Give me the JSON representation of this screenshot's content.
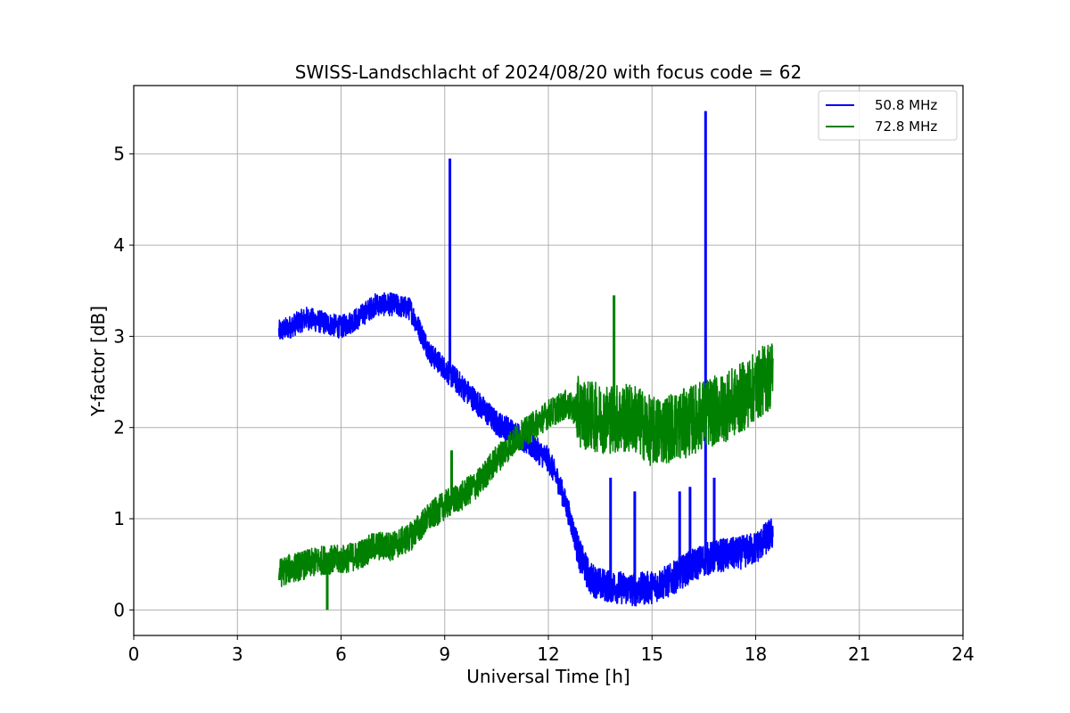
{
  "chart_data": {
    "type": "line",
    "title": "SWISS-Landschlacht of 2024/08/20 with focus code = 62",
    "xlabel": "Universal Time [h]",
    "ylabel": "Y-factor [dB]",
    "xlim": [
      0,
      24
    ],
    "ylim": [
      -0.28,
      5.75
    ],
    "xticks": [
      0,
      3,
      6,
      9,
      12,
      15,
      18,
      21,
      24
    ],
    "yticks": [
      0,
      1,
      2,
      3,
      4,
      5
    ],
    "grid": true,
    "legend_position": "top-right",
    "series": [
      {
        "name": "50.8 MHz",
        "color": "#0000ff",
        "noise": 0.28,
        "x": [
          4.2,
          4.5,
          5.0,
          5.5,
          6.0,
          6.5,
          7.0,
          7.5,
          8.0,
          8.3,
          8.6,
          9.0,
          9.5,
          10.0,
          10.5,
          11.0,
          11.5,
          12.0,
          12.3,
          12.6,
          12.9,
          13.2,
          13.5,
          14.0,
          14.5,
          15.0,
          15.5,
          16.0,
          16.5,
          17.0,
          17.5,
          18.0,
          18.5
        ],
        "y": [
          3.05,
          3.1,
          3.2,
          3.15,
          3.1,
          3.2,
          3.35,
          3.35,
          3.3,
          3.05,
          2.8,
          2.65,
          2.45,
          2.25,
          2.05,
          1.95,
          1.8,
          1.65,
          1.4,
          1.05,
          0.6,
          0.35,
          0.28,
          0.25,
          0.22,
          0.25,
          0.32,
          0.45,
          0.55,
          0.6,
          0.62,
          0.68,
          0.85
        ],
        "spikes": [
          {
            "x": 9.15,
            "y": 4.95
          },
          {
            "x": 16.55,
            "y": 5.47
          },
          {
            "x": 13.8,
            "y": 1.45
          },
          {
            "x": 14.5,
            "y": 1.3
          },
          {
            "x": 15.8,
            "y": 1.3
          },
          {
            "x": 16.1,
            "y": 1.35
          },
          {
            "x": 16.8,
            "y": 1.45
          }
        ]
      },
      {
        "name": "72.8 MHz",
        "color": "#008000",
        "noise": 0.32,
        "x": [
          4.2,
          4.5,
          5.0,
          5.5,
          6.0,
          6.5,
          7.0,
          7.5,
          8.0,
          8.5,
          9.0,
          9.5,
          10.0,
          10.5,
          11.0,
          11.5,
          12.0,
          12.5,
          13.0,
          13.5,
          14.0,
          14.5,
          15.0,
          15.5,
          16.0,
          16.5,
          17.0,
          17.5,
          18.0,
          18.5
        ],
        "y": [
          0.4,
          0.45,
          0.5,
          0.55,
          0.55,
          0.6,
          0.7,
          0.7,
          0.8,
          1.0,
          1.15,
          1.25,
          1.4,
          1.65,
          1.85,
          2.0,
          2.15,
          2.25,
          2.15,
          2.1,
          2.1,
          2.1,
          1.95,
          2.0,
          2.05,
          2.15,
          2.2,
          2.3,
          2.45,
          2.6
        ],
        "spikes": [
          {
            "x": 13.9,
            "y": 3.45
          },
          {
            "x": 9.2,
            "y": 1.75
          },
          {
            "x": 5.6,
            "y": 0.0
          }
        ]
      }
    ]
  }
}
